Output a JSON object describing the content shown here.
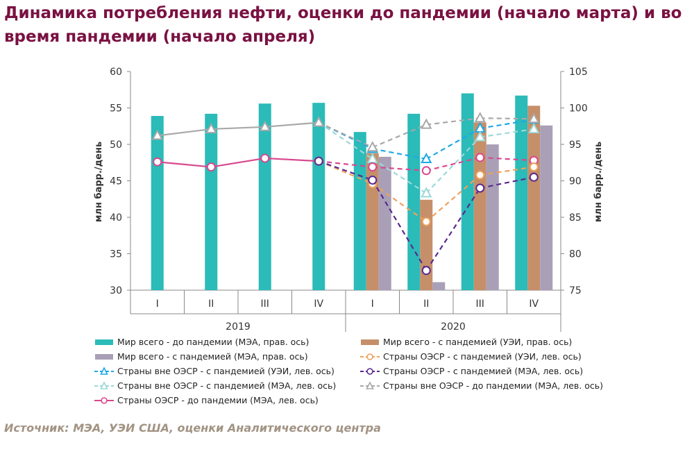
{
  "title": "Динамика потребления нефти, оценки до пандемии (начало марта) и во время пандемии (начало апреля)",
  "source": "Источник: МЭА, УЭИ США, оценки Аналитического центра",
  "chart_data": {
    "type": "bar",
    "categories": [
      "I",
      "II",
      "III",
      "IV",
      "I",
      "II",
      "III",
      "IV"
    ],
    "year_groups": [
      {
        "label": "2019",
        "from": 0,
        "to": 3
      },
      {
        "label": "2020",
        "from": 4,
        "to": 7
      }
    ],
    "ylabel_left": "млн барр./день",
    "ylabel_right": "млн барр./день",
    "ylim_left": [
      30,
      60
    ],
    "yticks_left": [
      30,
      35,
      40,
      45,
      50,
      55,
      60
    ],
    "ylim_right": [
      75,
      105
    ],
    "yticks_right": [
      75,
      80,
      85,
      90,
      95,
      100,
      105
    ],
    "grid": false,
    "bar_series": [
      {
        "name": "Мир всего - до пандемии (МЭА, прав. ось)",
        "axis": "right",
        "color": "#2bbbb8",
        "values": [
          98.9,
          99.2,
          100.6,
          100.7,
          96.7,
          99.2,
          102.0,
          101.7
        ]
      },
      {
        "name": "Мир всего - с пандемией (УЭИ, прав. ось)",
        "axis": "right",
        "color": "#c58f6a",
        "values": [
          null,
          null,
          null,
          null,
          93.8,
          87.4,
          98.0,
          100.3
        ]
      },
      {
        "name": "Мир всего - с пандемией (МЭА, прав. ось)",
        "axis": "right",
        "color": "#a9a0b7",
        "values": [
          null,
          null,
          null,
          null,
          93.3,
          76.1,
          95.0,
          97.6
        ]
      }
    ],
    "line_series": [
      {
        "name": "Страны вне ОЭСР - с пандемией (УЭИ, лев. ось)",
        "axis": "left",
        "color": "#1ca9e6",
        "marker": "triangle",
        "values": [
          null,
          null,
          null,
          53.0,
          49.4,
          48.0,
          52.2,
          53.4
        ],
        "dashed_from": 3
      },
      {
        "name": "Страны вне ОЭСР - с пандемией (МЭА, лев. ось)",
        "axis": "left",
        "color": "#9cd8d8",
        "marker": "triangle",
        "values": [
          null,
          null,
          null,
          53.0,
          48.0,
          43.3,
          51.0,
          52.1
        ],
        "dashed_from": 3
      },
      {
        "name": "Страны вне ОЭСР - до пандемии (МЭА, лев. ось)",
        "axis": "left",
        "color": "#a8a8a8",
        "marker": "triangle",
        "values": [
          51.2,
          52.1,
          52.4,
          53.0,
          49.6,
          52.7,
          53.6,
          53.5
        ],
        "dashed_from": 3
      },
      {
        "name": "Страны ОЭСР - до пандемии (МЭА, лев. ось)",
        "axis": "left",
        "color": "#d9478e",
        "marker": "circle",
        "values": [
          47.6,
          46.9,
          48.1,
          47.7,
          46.9,
          46.4,
          48.2,
          47.8
        ],
        "dashed_from": 3
      },
      {
        "name": "Страны ОЭСР - с пандемией (УЭИ, лев. ось)",
        "axis": "left",
        "color": "#f0a05a",
        "marker": "circle",
        "values": [
          null,
          null,
          null,
          47.7,
          44.6,
          39.4,
          45.8,
          46.9
        ],
        "dashed_from": 3
      },
      {
        "name": "Страны ОЭСР - с пандемией (МЭА, лев. ось)",
        "axis": "left",
        "color": "#5a2a8e",
        "marker": "circle",
        "values": [
          null,
          null,
          null,
          47.7,
          45.1,
          32.7,
          44.0,
          45.5
        ],
        "dashed_from": 3
      }
    ]
  },
  "legend": [
    {
      "label": "Мир всего - до пандемии (МЭА, прав. ось)",
      "kind": "bar",
      "color": "#2bbbb8"
    },
    {
      "label": "Мир всего - с пандемией (УЭИ, прав. ось)",
      "kind": "bar",
      "color": "#c58f6a"
    },
    {
      "label": "Мир всего - с пандемией (МЭА, прав. ось)",
      "kind": "bar",
      "color": "#a9a0b7"
    },
    {
      "label": "Страны ОЭСР - с пандемией (УЭИ, лев. ось)",
      "kind": "dash-circle",
      "color": "#f0a05a"
    },
    {
      "label": "Страны вне ОЭСР - с пандемией (УЭИ, лев. ось)",
      "kind": "dash-triangle",
      "color": "#1ca9e6"
    },
    {
      "label": "Страны ОЭСР - с пандемией (МЭА, лев. ось)",
      "kind": "dash-circle",
      "color": "#5a2a8e"
    },
    {
      "label": "Страны вне ОЭСР - с пандемией (МЭА, лев. ось)",
      "kind": "dash-triangle",
      "color": "#9cd8d8"
    },
    {
      "label": "Страны вне ОЭСР - до пандемии (МЭА, лев. ось)",
      "kind": "dash-triangle",
      "color": "#a8a8a8"
    },
    {
      "label": "Страны ОЭСР - до пандемии (МЭА, лев. ось)",
      "kind": "line-circle",
      "color": "#d9478e"
    }
  ]
}
